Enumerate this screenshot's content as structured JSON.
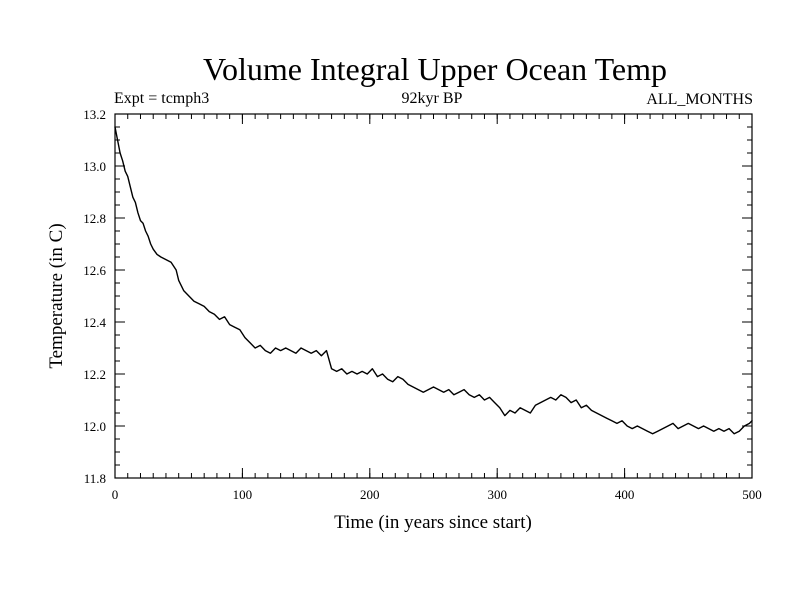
{
  "chart_data": {
    "type": "line",
    "title": "Volume Integral Upper Ocean Temp",
    "subtitle_left": "Expt = tcmph3",
    "subtitle_center": "92kyr BP",
    "subtitle_right": "ALL_MONTHS",
    "xlabel": "Time (in years since start)",
    "ylabel": "Temperature (in C)",
    "xlim": [
      0,
      500
    ],
    "ylim": [
      11.8,
      13.2
    ],
    "x_ticks": [
      0,
      100,
      200,
      300,
      400,
      500
    ],
    "y_ticks": [
      11.8,
      12.0,
      12.2,
      12.4,
      12.6,
      12.8,
      13.0,
      13.2
    ],
    "x_tick_labels": [
      "0",
      "100",
      "200",
      "300",
      "400",
      "500"
    ],
    "y_tick_labels": [
      "11.8",
      "12.0",
      "12.2",
      "12.4",
      "12.6",
      "12.8",
      "13.0",
      "13.2"
    ],
    "x_minor_step": 10,
    "y_minor_step": 0.05,
    "grid": false,
    "line_color": "#000000",
    "series": [
      {
        "x": [
          0,
          2,
          4,
          6,
          8,
          10,
          12,
          14,
          16,
          18,
          20,
          22,
          24,
          26,
          28,
          30,
          33,
          36,
          40,
          44,
          48,
          50,
          54,
          58,
          62,
          66,
          70,
          74,
          78,
          82,
          86,
          90,
          94,
          98,
          102,
          106,
          110,
          114,
          118,
          122,
          126,
          130,
          134,
          138,
          142,
          146,
          150,
          154,
          158,
          162,
          166,
          170,
          174,
          178,
          182,
          186,
          190,
          194,
          198,
          202,
          206,
          210,
          214,
          218,
          222,
          226,
          230,
          234,
          238,
          242,
          246,
          250,
          254,
          258,
          262,
          266,
          270,
          274,
          278,
          282,
          286,
          290,
          294,
          298,
          302,
          306,
          310,
          314,
          318,
          322,
          326,
          330,
          334,
          338,
          342,
          346,
          350,
          354,
          358,
          362,
          366,
          370,
          374,
          378,
          382,
          386,
          390,
          394,
          398,
          402,
          406,
          410,
          414,
          418,
          422,
          426,
          430,
          434,
          438,
          442,
          446,
          450,
          454,
          458,
          462,
          466,
          470,
          474,
          478,
          482,
          486,
          490,
          494,
          498,
          500
        ],
        "y": [
          13.15,
          13.1,
          13.05,
          13.02,
          12.98,
          12.96,
          12.92,
          12.88,
          12.86,
          12.82,
          12.79,
          12.78,
          12.75,
          12.73,
          12.7,
          12.68,
          12.66,
          12.65,
          12.64,
          12.63,
          12.6,
          12.56,
          12.52,
          12.5,
          12.48,
          12.47,
          12.46,
          12.44,
          12.43,
          12.41,
          12.42,
          12.39,
          12.38,
          12.37,
          12.34,
          12.32,
          12.3,
          12.31,
          12.29,
          12.28,
          12.3,
          12.29,
          12.3,
          12.29,
          12.28,
          12.3,
          12.29,
          12.28,
          12.29,
          12.27,
          12.29,
          12.22,
          12.21,
          12.22,
          12.2,
          12.21,
          12.2,
          12.21,
          12.2,
          12.22,
          12.19,
          12.2,
          12.18,
          12.17,
          12.19,
          12.18,
          12.16,
          12.15,
          12.14,
          12.13,
          12.14,
          12.15,
          12.14,
          12.13,
          12.14,
          12.12,
          12.13,
          12.14,
          12.12,
          12.11,
          12.12,
          12.1,
          12.11,
          12.09,
          12.07,
          12.04,
          12.06,
          12.05,
          12.07,
          12.06,
          12.05,
          12.08,
          12.09,
          12.1,
          12.11,
          12.1,
          12.12,
          12.11,
          12.09,
          12.1,
          12.07,
          12.08,
          12.06,
          12.05,
          12.04,
          12.03,
          12.02,
          12.01,
          12.02,
          12.0,
          11.99,
          12.0,
          11.99,
          11.98,
          11.97,
          11.98,
          11.99,
          12.0,
          12.01,
          11.99,
          12.0,
          12.01,
          12.0,
          11.99,
          12.0,
          11.99,
          11.98,
          11.99,
          11.98,
          11.99,
          11.97,
          11.98,
          12.0,
          12.01,
          12.02
        ]
      }
    ]
  }
}
